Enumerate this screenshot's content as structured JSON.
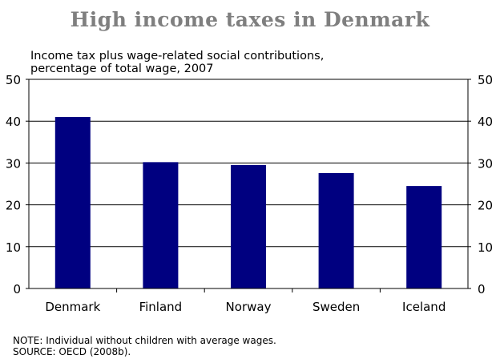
{
  "chart_data": {
    "type": "bar",
    "title": "High income taxes in Denmark",
    "subtitle_lines": [
      "Income tax plus wage-related social contributions,",
      "percentage of total wage, 2007"
    ],
    "categories": [
      "Denmark",
      "Finland",
      "Norway",
      "Sweden",
      "Iceland"
    ],
    "values": [
      41,
      30.2,
      29.5,
      27.6,
      24.5
    ],
    "ylim": [
      0,
      50
    ],
    "yticks": [
      0,
      10,
      20,
      30,
      40,
      50
    ],
    "grid": true,
    "bar_color": "#000080"
  },
  "footnotes": {
    "note": "NOTE:  Individual without children with average wages.",
    "source": "SOURCE: OECD (2008b)."
  }
}
